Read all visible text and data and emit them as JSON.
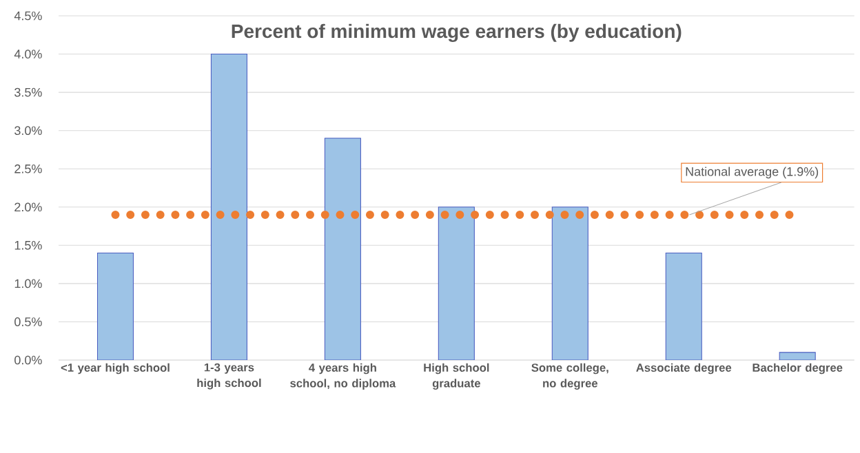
{
  "chart_data": {
    "type": "bar",
    "title": "Percent of minimum wage earners (by education)",
    "categories": [
      "<1 year high school",
      "1-3 years high school",
      "4 years high school, no diploma",
      "High school graduate",
      "Some college, no degree",
      "Associate degree",
      "Bachelor degree"
    ],
    "values": [
      1.4,
      4.0,
      2.9,
      2.0,
      2.0,
      1.4,
      0.1
    ],
    "color": "#9dc3e6",
    "ylim": [
      0,
      4.5
    ],
    "yticks": [
      {
        "value": 0,
        "label": "0.0%"
      },
      {
        "value": 0.5,
        "label": "0.5%"
      },
      {
        "value": 1,
        "label": "1.0%"
      },
      {
        "value": 1.5,
        "label": "1.5%"
      },
      {
        "value": 2,
        "label": "2.0%"
      },
      {
        "value": 2.5,
        "label": "2.5%"
      },
      {
        "value": 3,
        "label": "3.0%"
      },
      {
        "value": 3.5,
        "label": "3.5%"
      },
      {
        "value": 4,
        "label": "4.0%"
      },
      {
        "value": 4.5,
        "label": "4.5%"
      }
    ],
    "grid": "y",
    "ref_lines": [
      {
        "axis": "y",
        "value": 1.9,
        "label": "National average (1.9%)",
        "color": "#ed7d31",
        "line_style": "dotted"
      }
    ]
  }
}
